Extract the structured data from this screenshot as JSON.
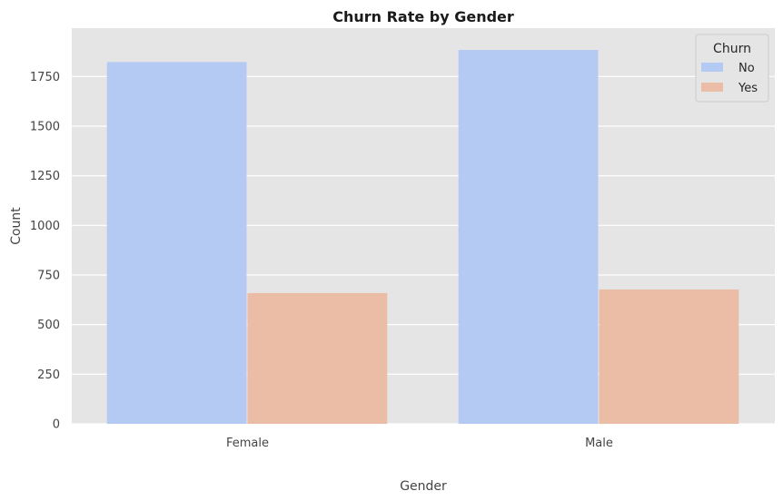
{
  "chart_data": {
    "type": "bar",
    "title": "Churn Rate by Gender",
    "xlabel": "Gender",
    "ylabel": "Count",
    "categories": [
      "Female",
      "Male"
    ],
    "series": [
      {
        "name": "No",
        "values": [
          1823,
          1884
        ],
        "color": "#b5caf3"
      },
      {
        "name": "Yes",
        "values": [
          659,
          677
        ],
        "color": "#ebbca6"
      }
    ],
    "ylim": [
      0,
      1884
    ],
    "yticks": [
      0,
      250,
      500,
      750,
      1000,
      1250,
      1500,
      1750
    ],
    "legend": {
      "title": "Churn",
      "position": "top-right"
    },
    "grid": true,
    "background": "#e5e5e5"
  }
}
